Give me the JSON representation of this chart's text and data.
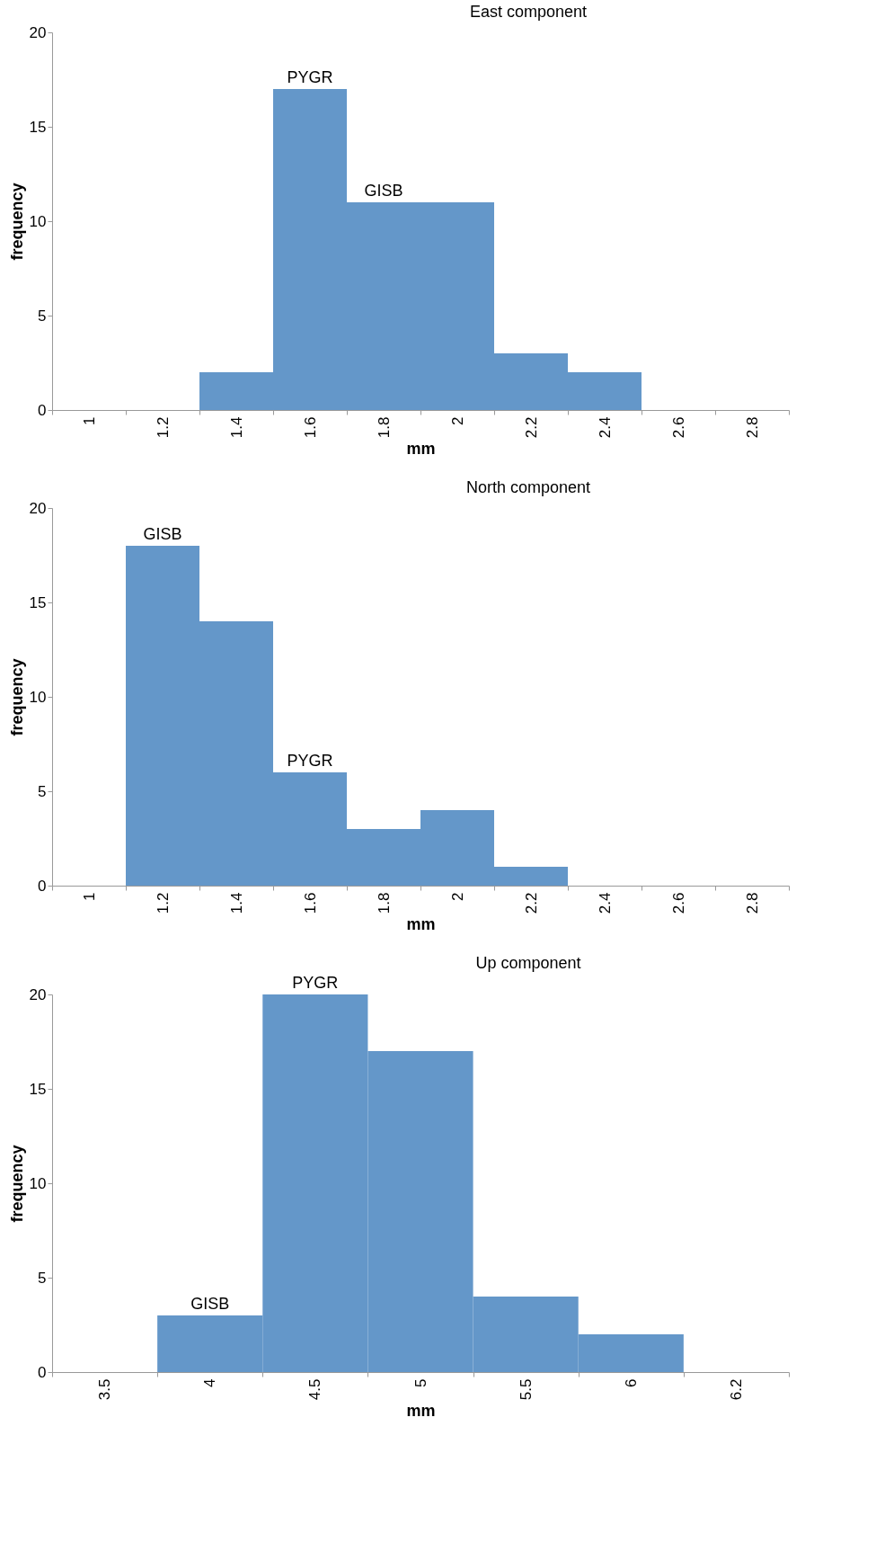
{
  "chart_data": [
    {
      "type": "bar",
      "title": "East component",
      "xlabel": "mm",
      "ylabel": "frequency",
      "categories": [
        "1",
        "1.2",
        "1.4",
        "1.6",
        "1.8",
        "2",
        "2.2",
        "2.4",
        "2.6",
        "2.8"
      ],
      "values": [
        0,
        0,
        2,
        17,
        11,
        11,
        3,
        2,
        0,
        0
      ],
      "color": "#6497c9",
      "ylim": [
        0,
        20
      ],
      "yticks": [
        0,
        5,
        10,
        15,
        20
      ],
      "grid": false,
      "legend": false,
      "annotations": [
        {
          "text": "PYGR",
          "x": "1.6",
          "y": 17
        },
        {
          "text": "GISB",
          "x": "1.8",
          "y": 11
        }
      ]
    },
    {
      "type": "bar",
      "title": "North component",
      "xlabel": "mm",
      "ylabel": "frequency",
      "categories": [
        "1",
        "1.2",
        "1.4",
        "1.6",
        "1.8",
        "2",
        "2.2",
        "2.4",
        "2.6",
        "2.8"
      ],
      "values": [
        0,
        18,
        14,
        6,
        3,
        4,
        1,
        0,
        0,
        0
      ],
      "color": "#6497c9",
      "ylim": [
        0,
        20
      ],
      "yticks": [
        0,
        5,
        10,
        15,
        20
      ],
      "grid": false,
      "legend": false,
      "annotations": [
        {
          "text": "GISB",
          "x": "1.2",
          "y": 18
        },
        {
          "text": "PYGR",
          "x": "1.6",
          "y": 6
        }
      ]
    },
    {
      "type": "bar",
      "title": "Up component",
      "xlabel": "mm",
      "ylabel": "frequency",
      "categories": [
        "3.5",
        "4",
        "4.5",
        "5",
        "5.5",
        "6",
        "6.2"
      ],
      "values": [
        0,
        3,
        20,
        17,
        4,
        2,
        0
      ],
      "color": "#6497c9",
      "ylim": [
        0,
        20
      ],
      "yticks": [
        0,
        5,
        10,
        15,
        20
      ],
      "grid": false,
      "legend": false,
      "annotations": [
        {
          "text": "PYGR",
          "x": "4.5",
          "y": 20
        },
        {
          "text": "GISB",
          "x": "4",
          "y": 3
        }
      ]
    }
  ]
}
